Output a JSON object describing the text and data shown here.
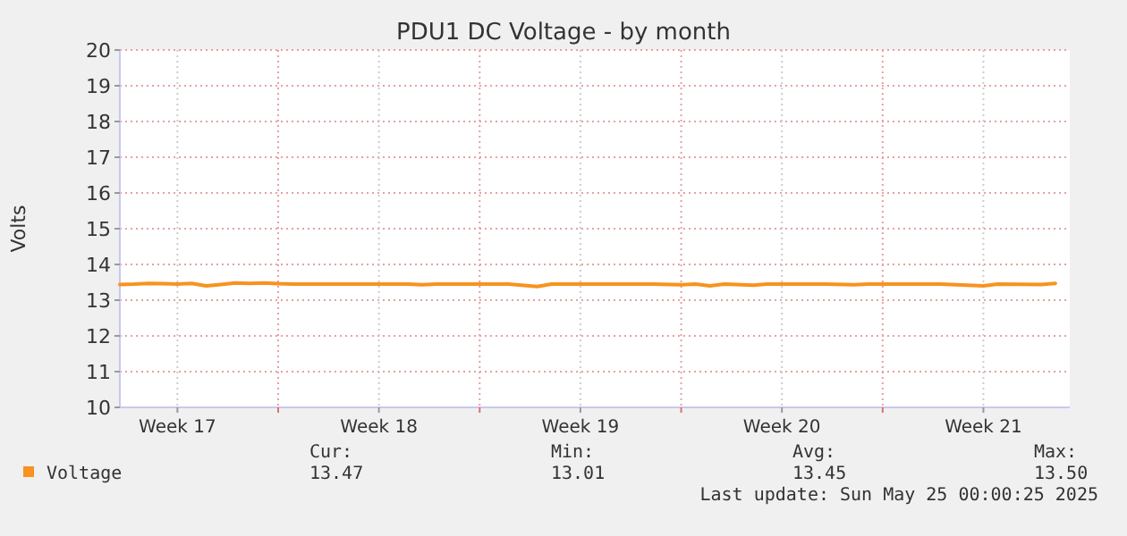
{
  "chart_data": {
    "type": "line",
    "title": "PDU1 DC Voltage - by month",
    "ylabel": "Volts",
    "x": [
      "2025-04-22T12:00",
      "2025-04-23T00:00",
      "2025-04-23T12:00",
      "2025-04-24T00:00",
      "2025-04-24T12:00",
      "2025-04-25T00:00",
      "2025-04-25T12:00",
      "2025-04-26T00:00",
      "2025-04-26T12:00",
      "2025-04-27T00:00",
      "2025-04-27T12:00",
      "2025-04-28T00:00",
      "2025-04-28T12:00",
      "2025-04-30T00:00",
      "2025-05-01T00:00",
      "2025-05-02T12:00",
      "2025-05-03T00:00",
      "2025-05-03T12:00",
      "2025-05-05T00:00",
      "2025-05-06T00:00",
      "2025-05-07T00:00",
      "2025-05-07T12:00",
      "2025-05-09T00:00",
      "2025-05-11T00:00",
      "2025-05-12T00:00",
      "2025-05-12T12:00",
      "2025-05-13T00:00",
      "2025-05-13T12:00",
      "2025-05-14T12:00",
      "2025-05-15T00:00",
      "2025-05-17T00:00",
      "2025-05-18T00:00",
      "2025-05-18T12:00",
      "2025-05-20T00:00",
      "2025-05-21T00:00",
      "2025-05-22T12:00",
      "2025-05-23T00:00",
      "2025-05-24T12:00",
      "2025-05-25T00:00"
    ],
    "series": [
      {
        "name": "Voltage",
        "color": "#f7931e",
        "values": [
          13.44,
          13.45,
          13.47,
          13.46,
          13.45,
          13.47,
          13.4,
          13.44,
          13.48,
          13.47,
          13.48,
          13.46,
          13.45,
          13.45,
          13.45,
          13.45,
          13.43,
          13.45,
          13.45,
          13.45,
          13.38,
          13.45,
          13.45,
          13.45,
          13.43,
          13.45,
          13.4,
          13.45,
          13.42,
          13.45,
          13.45,
          13.43,
          13.45,
          13.45,
          13.45,
          13.4,
          13.45,
          13.44,
          13.47
        ]
      }
    ],
    "xlim": [
      "2025-04-22T12:00",
      "2025-05-25T12:00"
    ],
    "xticks": [
      {
        "value": "2025-04-24T12:00",
        "label": "Week 17"
      },
      {
        "value": "2025-04-28T00:00",
        "label": null
      },
      {
        "value": "2025-05-01T12:00",
        "label": "Week 18"
      },
      {
        "value": "2025-05-05T00:00",
        "label": null
      },
      {
        "value": "2025-05-08T12:00",
        "label": "Week 19"
      },
      {
        "value": "2025-05-12T00:00",
        "label": null
      },
      {
        "value": "2025-05-15T12:00",
        "label": "Week 20"
      },
      {
        "value": "2025-05-19T00:00",
        "label": null
      },
      {
        "value": "2025-05-22T12:00",
        "label": "Week 21"
      }
    ],
    "ylim": [
      10,
      20
    ],
    "yticks": [
      10,
      11,
      12,
      13,
      14,
      15,
      16,
      17,
      18,
      19,
      20
    ],
    "grid": true,
    "legend": "bottom",
    "marker": "none",
    "line_style": "solid",
    "annotations": [
      "Cur:",
      "13.47",
      "Min:",
      "13.01",
      "Avg:",
      "13.45",
      "Max:",
      "13.50",
      "Last update: Sun May 25 00:00:25 2025"
    ]
  }
}
